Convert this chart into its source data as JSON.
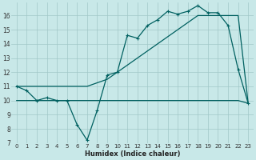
{
  "xlabel": "Humidex (Indice chaleur)",
  "bg_color": "#c8e8e8",
  "grid_color": "#a0c8c8",
  "line_color": "#006060",
  "xlim": [
    -0.5,
    23.5
  ],
  "ylim": [
    7,
    16.9
  ],
  "yticks": [
    7,
    8,
    9,
    10,
    11,
    12,
    13,
    14,
    15,
    16
  ],
  "xticks": [
    0,
    1,
    2,
    3,
    4,
    5,
    6,
    7,
    8,
    9,
    10,
    11,
    12,
    13,
    14,
    15,
    16,
    17,
    18,
    19,
    20,
    21,
    22,
    23
  ],
  "line1_x": [
    0,
    1,
    2,
    3,
    4,
    5,
    6,
    7,
    8,
    9,
    10,
    11,
    12,
    13,
    14,
    15,
    16,
    17,
    18,
    19,
    20,
    21,
    22,
    23
  ],
  "line1_y": [
    11,
    10.7,
    10,
    10.2,
    10,
    10,
    8.3,
    7.2,
    9.3,
    11.8,
    12.0,
    14.6,
    14.4,
    15.3,
    15.7,
    16.3,
    16.1,
    16.3,
    16.7,
    16.2,
    16.2,
    15.3,
    12.2,
    9.8
  ],
  "line2_x": [
    0,
    7,
    9,
    10,
    11,
    12,
    13,
    14,
    15,
    16,
    17,
    18,
    19,
    20,
    21,
    22,
    23
  ],
  "line2_y": [
    11,
    11,
    11.5,
    12.0,
    12.5,
    13.0,
    13.5,
    14.0,
    14.5,
    15.0,
    15.5,
    16.0,
    16.0,
    16.0,
    16.0,
    16.0,
    9.8
  ],
  "line3_x": [
    0,
    1,
    2,
    3,
    4,
    5,
    6,
    7,
    8,
    9,
    10,
    11,
    12,
    13,
    14,
    15,
    16,
    17,
    18,
    19,
    20,
    21,
    22,
    23
  ],
  "line3_y": [
    10,
    10,
    10,
    10,
    10,
    10,
    10,
    10,
    10,
    10,
    10,
    10,
    10,
    10,
    10,
    10,
    10,
    10,
    10,
    10,
    10,
    10,
    10,
    9.8
  ],
  "linewidth": 0.9,
  "markersize": 3.5,
  "tick_fontsize": 5.0,
  "xlabel_fontsize": 6.0
}
